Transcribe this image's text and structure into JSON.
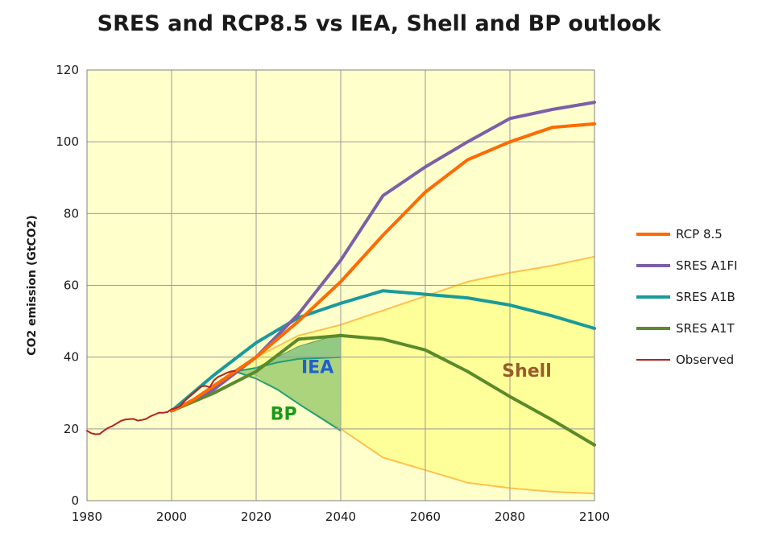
{
  "chart_data": {
    "type": "line",
    "title": "SRES and RCP8.5 vs IEA, Shell and BP outlook",
    "xlabel": "",
    "ylabel": "CO2 emission (GtCO2)",
    "xlim": [
      1980,
      2100
    ],
    "ylim": [
      0,
      120
    ],
    "xticks": [
      1980,
      2000,
      2020,
      2040,
      2060,
      2080,
      2100
    ],
    "yticks": [
      0,
      20,
      40,
      60,
      80,
      100,
      120
    ],
    "grid": true,
    "legend_position": "right",
    "colors": {
      "plot_background": "#FFFFCC",
      "shell_band": "#FFFF99",
      "shell_edge": "#FFC04D",
      "iea_band": "#7FBF7F",
      "bp_band": "#B8D87A",
      "bp_edge": "#20A070",
      "grid": "#9A9A9A",
      "iea_label": "#1F5FD0",
      "bp_label": "#1A9A1A",
      "shell_label": "#9A5A2A"
    },
    "series": [
      {
        "name": "RCP 8.5",
        "color": "#FF6A00",
        "x": [
          2000,
          2005,
          2010,
          2020,
          2030,
          2040,
          2050,
          2060,
          2070,
          2080,
          2090,
          2100
        ],
        "y": [
          25,
          28,
          32,
          40,
          50,
          61,
          74,
          86,
          95,
          100,
          104,
          105
        ]
      },
      {
        "name": "SRES A1FI",
        "color": "#7B5FA8",
        "x": [
          2000,
          2010,
          2020,
          2030,
          2040,
          2050,
          2060,
          2070,
          2080,
          2090,
          2100
        ],
        "y": [
          25,
          31,
          40,
          52,
          67,
          85,
          93,
          100,
          106.5,
          109,
          111
        ]
      },
      {
        "name": "SRES A1B",
        "color": "#1A9A9A",
        "x": [
          2000,
          2010,
          2020,
          2030,
          2040,
          2050,
          2060,
          2070,
          2080,
          2090,
          2100
        ],
        "y": [
          25,
          35,
          44,
          51,
          55,
          58.5,
          57.5,
          56.5,
          54.5,
          51.5,
          48
        ]
      },
      {
        "name": "SRES A1T",
        "color": "#5A8A2A",
        "x": [
          2000,
          2010,
          2020,
          2030,
          2040,
          2050,
          2060,
          2070,
          2080,
          2090,
          2100
        ],
        "y": [
          25,
          30,
          36,
          45,
          46,
          45,
          42,
          36,
          29,
          22.5,
          15.5
        ]
      },
      {
        "name": "Observed",
        "color": "#B22222",
        "x": [
          1980,
          1981,
          1982,
          1983,
          1984,
          1985,
          1986,
          1987,
          1988,
          1989,
          1990,
          1991,
          1992,
          1993,
          1994,
          1995,
          1996,
          1997,
          1998,
          1999,
          2000,
          2001,
          2002,
          2003,
          2004,
          2005,
          2006,
          2007,
          2008,
          2009,
          2010,
          2011,
          2012,
          2013,
          2014,
          2015
        ],
        "y": [
          19.5,
          18.8,
          18.5,
          18.6,
          19.5,
          20.3,
          20.8,
          21.5,
          22.2,
          22.6,
          22.7,
          22.8,
          22.3,
          22.5,
          22.8,
          23.5,
          24.0,
          24.5,
          24.5,
          24.7,
          25.5,
          25.8,
          26.3,
          27.7,
          28.8,
          29.8,
          30.8,
          31.8,
          32.0,
          31.6,
          33.5,
          34.5,
          35.0,
          35.6,
          36.0,
          36.2
        ]
      }
    ],
    "bands": [
      {
        "label": "Shell",
        "upper": {
          "x": [
            2015,
            2020,
            2030,
            2040,
            2050,
            2060,
            2070,
            2080,
            2090,
            2100
          ],
          "y": [
            36,
            40,
            46,
            49,
            53,
            57,
            61,
            63.5,
            65.5,
            68
          ]
        },
        "lower": {
          "x": [
            2015,
            2020,
            2030,
            2040,
            2050,
            2060,
            2070,
            2080,
            2090,
            2100
          ],
          "y": [
            36,
            34,
            28,
            20,
            12,
            8.5,
            5,
            3.5,
            2.5,
            2
          ]
        }
      },
      {
        "label": "IEA",
        "upper": {
          "x": [
            2015,
            2020,
            2030,
            2040
          ],
          "y": [
            36,
            37,
            43,
            46.5
          ]
        },
        "lower": {
          "x": [
            2015,
            2020,
            2030,
            2040
          ],
          "y": [
            36,
            35,
            27,
            20
          ]
        }
      },
      {
        "label": "BP",
        "upper": {
          "x": [
            2015,
            2020,
            2025,
            2030,
            2040
          ],
          "y": [
            36,
            37,
            38.5,
            39.5,
            40
          ]
        },
        "lower": {
          "x": [
            2015,
            2020,
            2025,
            2030,
            2040
          ],
          "y": [
            36,
            34,
            31,
            27,
            19.5
          ]
        }
      }
    ],
    "annotations": [
      {
        "text": "IEA",
        "x": 2034.5,
        "y": 35.5
      },
      {
        "text": "BP",
        "x": 2026.5,
        "y": 22.5
      },
      {
        "text": "Shell",
        "x": 2084,
        "y": 34.5
      }
    ]
  }
}
